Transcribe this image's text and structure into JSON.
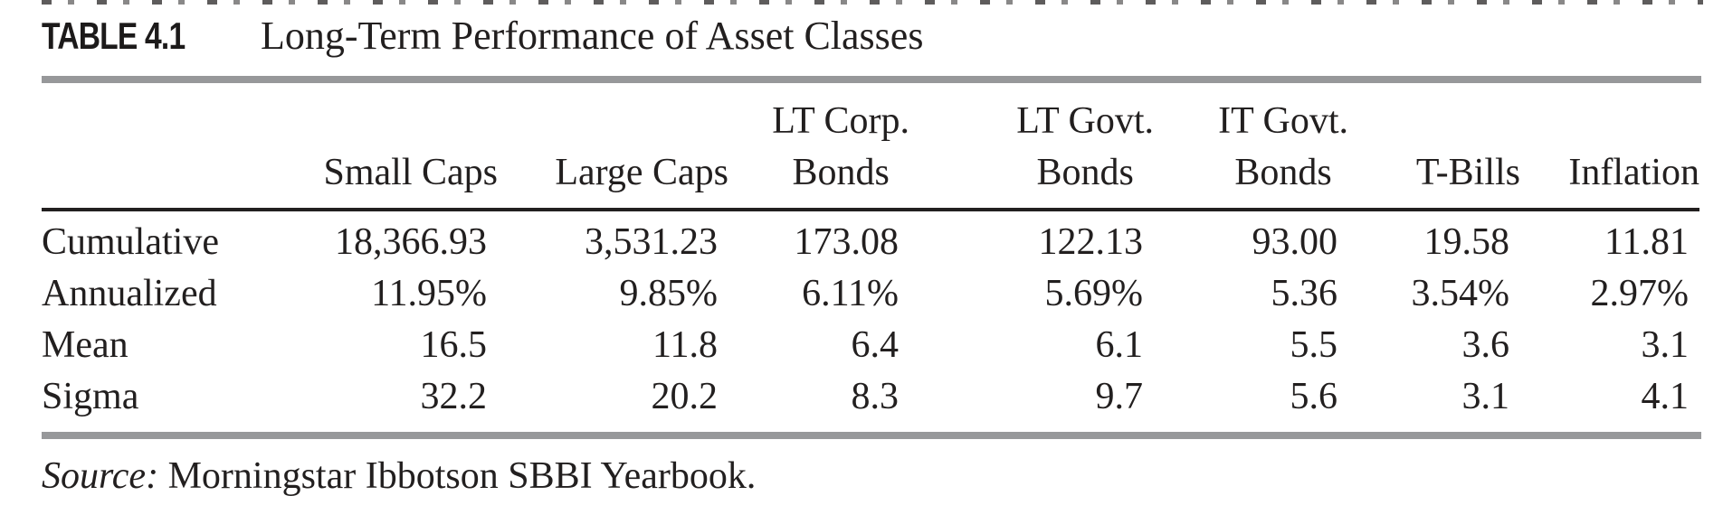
{
  "table": {
    "label": "TABLE 4.1",
    "title": "Long-Term Performance of Asset Classes",
    "columns": [
      {
        "line1": "",
        "line2": "Small Caps"
      },
      {
        "line1": "",
        "line2": "Large Caps"
      },
      {
        "line1": "LT Corp.",
        "line2": "Bonds"
      },
      {
        "line1": "LT Govt.",
        "line2": "Bonds"
      },
      {
        "line1": "IT Govt.",
        "line2": "Bonds"
      },
      {
        "line1": "",
        "line2": "T-Bills"
      },
      {
        "line1": "",
        "line2": "Inflation"
      }
    ],
    "rows": [
      {
        "label": "Cumulative",
        "values": [
          "18,366.93",
          "3,531.23",
          "173.08",
          "122.13",
          "93.00",
          "19.58",
          "11.81"
        ]
      },
      {
        "label": "Annualized",
        "values": [
          "11.95%",
          "9.85%",
          "6.11%",
          "5.69%",
          "5.36",
          "3.54%",
          "2.97%"
        ]
      },
      {
        "label": "Mean",
        "values": [
          "16.5",
          "11.8",
          "6.4",
          "6.1",
          "5.5",
          "3.6",
          "3.1"
        ]
      },
      {
        "label": "Sigma",
        "values": [
          "32.2",
          "20.2",
          "8.3",
          "9.7",
          "5.6",
          "3.1",
          "4.1"
        ]
      }
    ],
    "source_label": "Source:",
    "source_text": "Morningstar Ibbotson SBBI Yearbook."
  },
  "colors": {
    "text": "#221f1f",
    "rule_gray": "#97989a",
    "rule_black": "#221f1f",
    "background": "#ffffff"
  }
}
